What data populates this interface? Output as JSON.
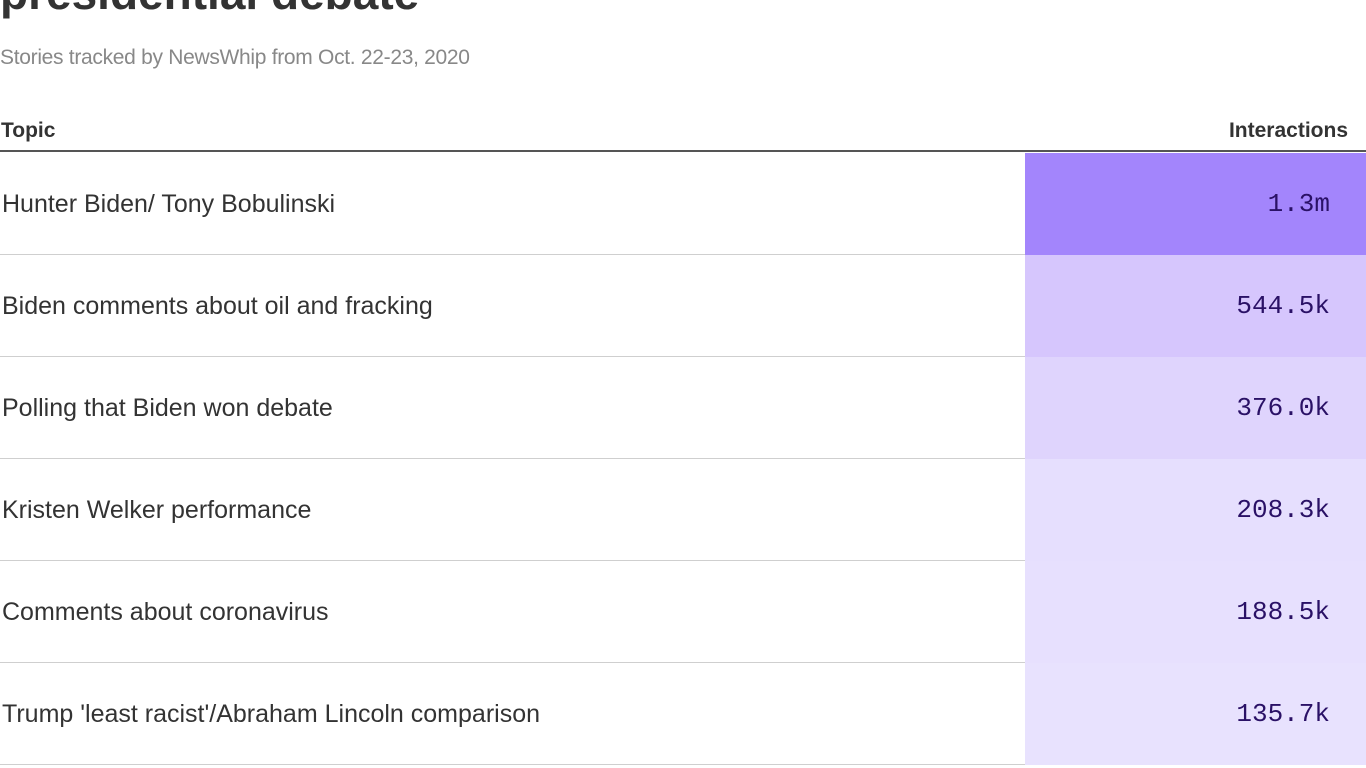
{
  "header": {
    "title": "presidential debate",
    "subtitle": "Stories tracked by NewsWhip from Oct. 22-23, 2020"
  },
  "chart_data": {
    "type": "table",
    "title": "presidential debate",
    "subtitle": "Stories tracked by NewsWhip from Oct. 22-23, 2020",
    "columns": [
      "Topic",
      "Interactions"
    ],
    "rows": [
      {
        "topic": "Hunter Biden/ Tony Bobulinski",
        "interactions": "1.3m",
        "value": 1300000,
        "color": "#a385fc"
      },
      {
        "topic": "Biden comments about oil and fracking",
        "interactions": "544.5k",
        "value": 544500,
        "color": "#d6c6fd"
      },
      {
        "topic": "Polling that Biden won debate",
        "interactions": "376.0k",
        "value": 376000,
        "color": "#dfd4fd"
      },
      {
        "topic": "Kristen Welker performance",
        "interactions": "208.3k",
        "value": 208300,
        "color": "#e6dffe"
      },
      {
        "topic": "Comments about coronavirus",
        "interactions": "188.5k",
        "value": 188500,
        "color": "#e7e0fe"
      },
      {
        "topic": "Trump 'least racist'/Abraham Lincoln comparison",
        "interactions": "135.7k",
        "value": 135700,
        "color": "#e8e2fe"
      }
    ]
  },
  "colors": {
    "text": "#333333",
    "value_text": "#2a1166",
    "subtitle": "#888888",
    "header_rule": "#555555",
    "row_rule": "#cfcfcf"
  }
}
